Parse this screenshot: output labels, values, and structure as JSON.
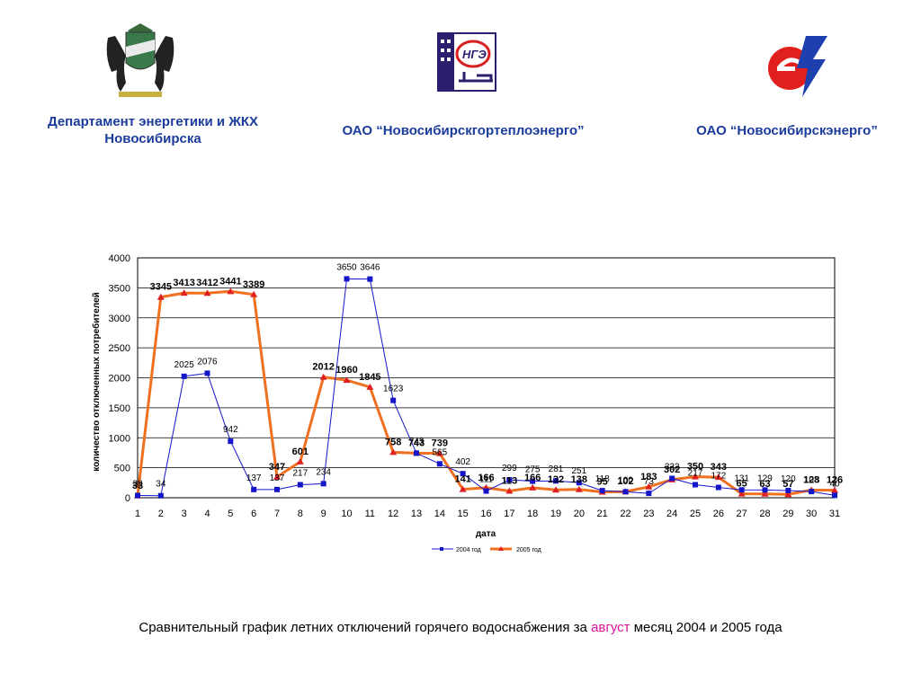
{
  "header": {
    "orgs": [
      {
        "name_line1": "Департамент энергетики и ЖКХ",
        "name_line2": "Новосибирска",
        "logo_icon": "novosibirsk-coat-of-arms-icon"
      },
      {
        "name_line1": "ОАО “Новосибирскгортеплоэнерго”",
        "name_line2": "",
        "logo_icon": "ngte-logo-icon",
        "logo_text": "НГЭ"
      },
      {
        "name_line1": "ОАО “Новосибирскэнерго”",
        "name_line2": "",
        "logo_icon": "novosibirskenergo-logo-icon"
      }
    ],
    "name_color": "#1c3c9c"
  },
  "caption": {
    "before": "Сравнительный график летних отключений горячего водоснабжения за ",
    "highlight": "август",
    "after": " месяц 2004 и 2005 года",
    "highlight_color": "#e0149a"
  },
  "chart_data": {
    "type": "line",
    "x": [
      1,
      2,
      3,
      4,
      5,
      6,
      7,
      8,
      9,
      10,
      11,
      12,
      13,
      14,
      15,
      16,
      17,
      18,
      19,
      20,
      21,
      22,
      23,
      24,
      25,
      26,
      27,
      28,
      29,
      30,
      31
    ],
    "xlabel": "дата",
    "ylabel": "количество отключенных потребителей",
    "ylim": [
      0,
      4000
    ],
    "yticks": [
      0,
      500,
      1000,
      1500,
      2000,
      2500,
      3000,
      3500,
      4000
    ],
    "grid": true,
    "legend": "bottom",
    "series": [
      {
        "name": "2004 год",
        "color": "#1414c8",
        "marker": "square",
        "values": [
          38,
          34,
          2025,
          2076,
          942,
          137,
          137,
          217,
          234,
          3650,
          3646,
          1623,
          743,
          565,
          402,
          111,
          299,
          275,
          281,
          251,
          118,
          100,
          73,
          322,
          217,
          172,
          131,
          129,
          120,
          103,
          40
        ]
      },
      {
        "name": "2005 год",
        "color": "#f07020",
        "marker": "triangle",
        "values": [
          33,
          3345,
          3413,
          3412,
          3441,
          3389,
          347,
          601,
          2012,
          1960,
          1845,
          758,
          743,
          739,
          141,
          166,
          113,
          166,
          132,
          138,
          95,
          102,
          183,
          302,
          350,
          343,
          65,
          63,
          57,
          128,
          126
        ]
      }
    ]
  }
}
